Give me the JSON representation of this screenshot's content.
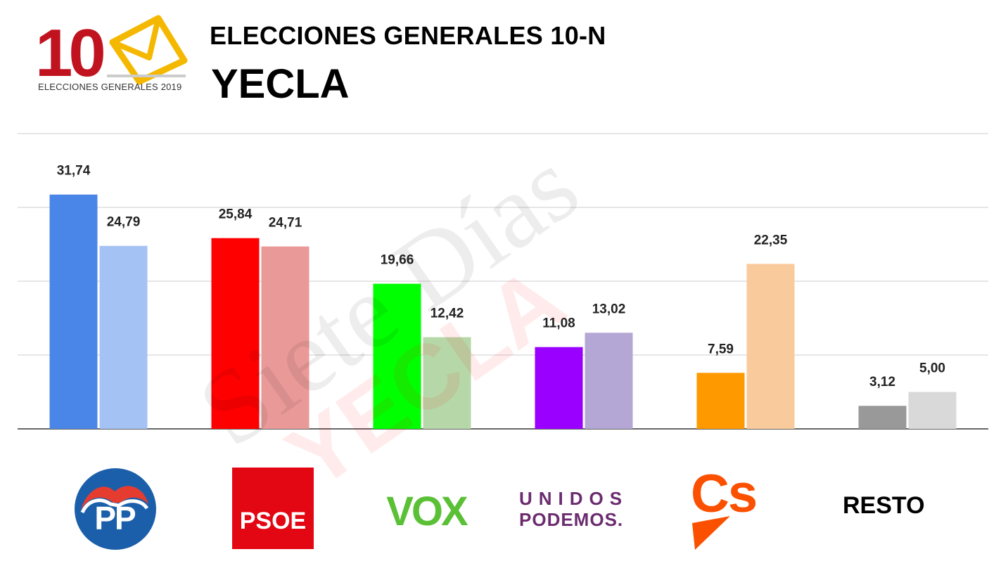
{
  "header": {
    "logo_number": "10",
    "logo_caption": "ELECCIONES GENERALES 2019",
    "headline": "ELECCIONES GENERALES 10-N",
    "place": "YECLA"
  },
  "watermark": {
    "line1": "Siete Días",
    "line2": "YECLA"
  },
  "logos": {
    "pp": "PP",
    "psoe": "PSOE",
    "vox": "VOX",
    "up_line1": "UNIDOS",
    "up_line2": "PODEMOS.",
    "cs": "Cs",
    "resto": "RESTO"
  },
  "chart_data": {
    "type": "bar",
    "categories": [
      "PP",
      "PSOE",
      "VOX",
      "UNIDOS PODEMOS",
      "Cs",
      "RESTO"
    ],
    "series": [
      {
        "values": [
          31.74,
          25.84,
          19.66,
          11.08,
          7.59,
          3.12
        ],
        "colors": [
          "#4a86e8",
          "#ff0000",
          "#00ff00",
          "#9900ff",
          "#ff9900",
          "#999999"
        ]
      },
      {
        "values": [
          24.79,
          24.71,
          12.42,
          13.02,
          22.35,
          5.0
        ],
        "colors": [
          "#a4c2f4",
          "#ea9999",
          "#b6d7a8",
          "#b4a7d6",
          "#f9cb9c",
          "#d9d9d9"
        ]
      }
    ],
    "value_labels": [
      [
        "31,74",
        "25,84",
        "19,66",
        "11,08",
        "7,59",
        "3,12"
      ],
      [
        "24,79",
        "24,71",
        "12,42",
        "13,02",
        "22,35",
        "5,00"
      ]
    ],
    "ylim": [
      0,
      40
    ],
    "gridlines": [
      0,
      10,
      20,
      30,
      40
    ],
    "grid": true,
    "legend": "none",
    "xlabel": "",
    "ylabel": ""
  }
}
